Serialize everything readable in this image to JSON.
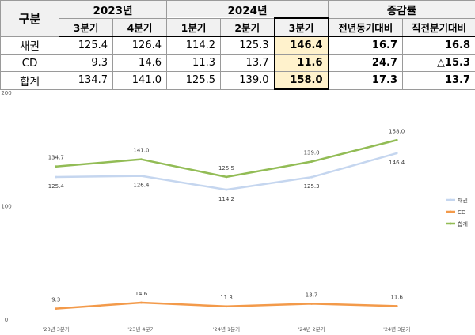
{
  "table": {
    "col_header": "구분",
    "year_2023": "2023년",
    "year_2024": "2024년",
    "change_header": "증감률",
    "sub_headers": [
      "3분기",
      "4분기",
      "1분기",
      "2분기",
      "3분기",
      "전년동기대비",
      "직전분기대비"
    ],
    "rows": [
      {
        "label": "채권",
        "values": [
          "125.4",
          "126.4",
          "114.2",
          "125.3",
          "146.4",
          "16.7",
          "16.8"
        ]
      },
      {
        "label": "CD",
        "values": [
          "9.3",
          "14.6",
          "11.3",
          "13.7",
          "11.6",
          "24.7",
          "△15.3"
        ]
      },
      {
        "label": "합계",
        "values": [
          "134.7",
          "141.0",
          "125.5",
          "139.0",
          "158.0",
          "17.3",
          "13.7"
        ]
      }
    ],
    "highlight_color": "#fff2cc"
  },
  "chart_data": {
    "type": "line",
    "categories": [
      "'23년 3분기",
      "'23년 4분기",
      "'24년 1분기",
      "'24년 2분기",
      "'24년 3분기"
    ],
    "y_ticks": [
      "0",
      "100",
      "200"
    ],
    "ylim": [
      0,
      200
    ],
    "series": [
      {
        "name": "채권",
        "values": [
          125.4,
          126.4,
          114.2,
          125.3,
          146.4
        ],
        "color": "#c5d6ef"
      },
      {
        "name": "CD",
        "values": [
          9.3,
          14.6,
          11.3,
          13.7,
          11.6
        ],
        "color": "#f39a4a"
      },
      {
        "name": "합계",
        "values": [
          134.7,
          141.0,
          125.5,
          139.0,
          158.0
        ],
        "color": "#92bc55"
      }
    ],
    "data_labels": [
      [
        "125.4",
        "126.4",
        "114.2",
        "125.3",
        "146.4"
      ],
      [
        "9.3",
        "14.6",
        "11.3",
        "13.7",
        "11.6"
      ],
      [
        "134.7",
        "141.0",
        "125.5",
        "139.0",
        "158.0"
      ]
    ],
    "legend_position": "right",
    "grid": false
  }
}
